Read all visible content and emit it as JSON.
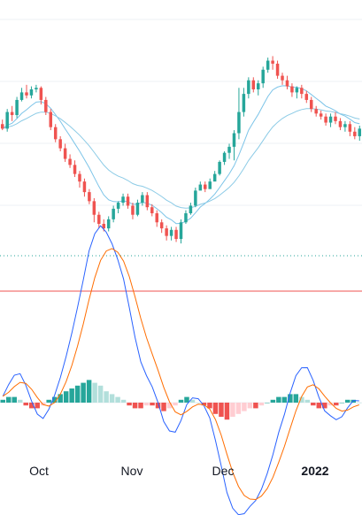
{
  "colors": {
    "background": "#ffffff",
    "grid": "#eef0f4",
    "up_candle": "#26a69a",
    "down_candle": "#ef5350",
    "ma_fast": "#7cc4e8",
    "ma_slow": "#8ccbe6",
    "macd_line": "#2962ff",
    "signal_line": "#ff6d00",
    "hist_up_strong": "#26a69a",
    "hist_up_weak": "#b2dfdb",
    "hist_down_strong": "#ef5350",
    "hist_down_weak": "#ffcdd2",
    "price_line": "#ef5350",
    "dotted_level": "#26a69a",
    "axis_text": "#131722"
  },
  "chart_data": [
    {
      "type": "candlestick",
      "title": "",
      "x_axis_labels": [
        "Oct",
        "Nov",
        "Dec",
        "2022"
      ],
      "ohlc": [
        [
          216,
          210,
          222,
          208
        ],
        [
          210,
          232,
          236,
          206
        ],
        [
          232,
          228,
          240,
          220
        ],
        [
          228,
          248,
          252,
          224
        ],
        [
          248,
          258,
          264,
          246
        ],
        [
          258,
          254,
          268,
          250
        ],
        [
          254,
          262,
          266,
          250
        ],
        [
          262,
          264,
          268,
          258
        ],
        [
          264,
          248,
          266,
          242
        ],
        [
          248,
          232,
          252,
          228
        ],
        [
          232,
          212,
          236,
          208
        ],
        [
          212,
          196,
          216,
          192
        ],
        [
          196,
          184,
          200,
          180
        ],
        [
          184,
          170,
          190,
          166
        ],
        [
          170,
          162,
          176,
          158
        ],
        [
          162,
          150,
          168,
          146
        ],
        [
          150,
          140,
          154,
          132
        ],
        [
          140,
          126,
          144,
          120
        ],
        [
          126,
          114,
          130,
          110
        ],
        [
          114,
          96,
          118,
          86
        ],
        [
          96,
          84,
          100,
          78
        ],
        [
          84,
          78,
          90,
          74
        ],
        [
          78,
          90,
          94,
          74
        ],
        [
          90,
          104,
          108,
          86
        ],
        [
          104,
          112,
          114,
          98
        ],
        [
          112,
          120,
          124,
          108
        ],
        [
          120,
          108,
          124,
          104
        ],
        [
          108,
          96,
          112,
          90
        ],
        [
          96,
          112,
          116,
          94
        ],
        [
          112,
          122,
          126,
          108
        ],
        [
          122,
          106,
          126,
          102
        ],
        [
          106,
          98,
          110,
          94
        ],
        [
          98,
          86,
          102,
          80
        ],
        [
          86,
          78,
          90,
          72
        ],
        [
          78,
          68,
          82,
          62
        ],
        [
          68,
          76,
          80,
          62
        ],
        [
          76,
          64,
          80,
          60
        ],
        [
          64,
          86,
          90,
          58
        ],
        [
          86,
          98,
          102,
          84
        ],
        [
          98,
          108,
          112,
          96
        ],
        [
          108,
          128,
          132,
          106
        ],
        [
          128,
          136,
          140,
          132
        ],
        [
          136,
          130,
          140,
          126
        ],
        [
          130,
          140,
          144,
          134
        ],
        [
          140,
          150,
          154,
          148
        ],
        [
          150,
          166,
          168,
          148
        ],
        [
          166,
          178,
          180,
          162
        ],
        [
          178,
          186,
          190,
          170
        ],
        [
          186,
          204,
          208,
          168
        ],
        [
          204,
          232,
          264,
          196
        ],
        [
          232,
          256,
          264,
          226
        ],
        [
          256,
          274,
          278,
          250
        ],
        [
          274,
          262,
          278,
          258
        ],
        [
          262,
          270,
          274,
          254
        ],
        [
          270,
          288,
          292,
          264
        ],
        [
          288,
          300,
          304,
          284
        ],
        [
          300,
          296,
          306,
          288
        ],
        [
          296,
          280,
          300,
          276
        ],
        [
          280,
          274,
          284,
          268
        ],
        [
          274,
          266,
          280,
          262
        ],
        [
          266,
          258,
          270,
          252
        ],
        [
          258,
          264,
          266,
          250
        ],
        [
          264,
          256,
          268,
          250
        ],
        [
          256,
          248,
          260,
          244
        ],
        [
          248,
          236,
          252,
          232
        ],
        [
          236,
          230,
          240,
          226
        ],
        [
          230,
          226,
          234,
          222
        ],
        [
          226,
          218,
          230,
          214
        ],
        [
          218,
          226,
          230,
          212
        ],
        [
          226,
          220,
          232,
          216
        ],
        [
          220,
          212,
          224,
          208
        ],
        [
          212,
          216,
          220,
          206
        ],
        [
          216,
          206,
          220,
          200
        ],
        [
          206,
          200,
          212,
          196
        ],
        [
          200,
          210,
          214,
          194
        ]
      ]
    },
    {
      "type": "line",
      "title": "",
      "series_count": 2
    },
    {
      "type": "bar",
      "title": "",
      "histogram": [
        1,
        2,
        2,
        1,
        -1,
        -2,
        -2,
        -1,
        1,
        2,
        3,
        4,
        5,
        6,
        7,
        8,
        7,
        6,
        4,
        3,
        2,
        1,
        -1,
        -2,
        -2,
        -1,
        -1,
        -2,
        -3,
        -2,
        -1,
        1,
        2,
        1,
        0,
        -1,
        -2,
        -4,
        -5,
        -6,
        -5,
        -4,
        -3,
        -2,
        -2,
        -1,
        0,
        1,
        2,
        2,
        3,
        3,
        2,
        1,
        -1,
        -2,
        -2,
        -1,
        -1,
        0,
        1,
        1,
        0
      ]
    }
  ]
}
